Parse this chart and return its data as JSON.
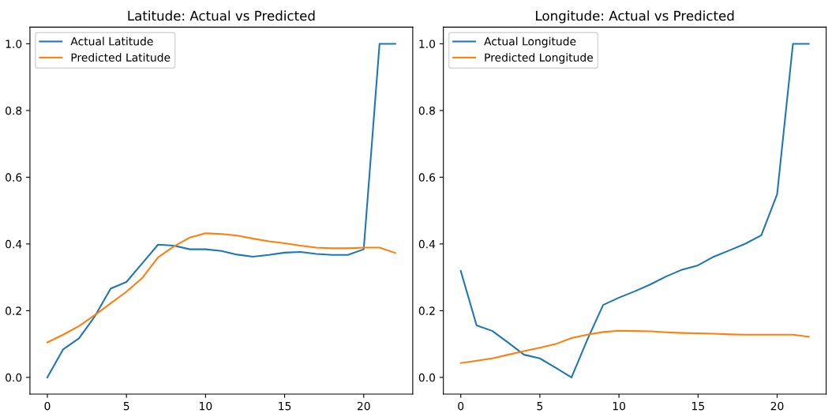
{
  "chart_data": [
    {
      "type": "line",
      "title": "Latitude: Actual vs Predicted",
      "x": [
        0,
        1,
        2,
        3,
        4,
        5,
        6,
        7,
        8,
        9,
        10,
        11,
        12,
        13,
        14,
        15,
        16,
        17,
        18,
        19,
        20,
        21,
        22
      ],
      "series": [
        {
          "name": "Actual Latitude",
          "color": "#1f77b4",
          "values": [
            0,
            0.084,
            0.117,
            0.183,
            0.266,
            0.286,
            0.342,
            0.398,
            0.395,
            0.384,
            0.384,
            0.379,
            0.368,
            0.362,
            0.367,
            0.374,
            0.376,
            0.37,
            0.367,
            0.367,
            0.384,
            1.0,
            1.0
          ]
        },
        {
          "name": "Predicted Latitude",
          "color": "#ff7f0e",
          "values": [
            0.105,
            0.128,
            0.154,
            0.187,
            0.222,
            0.257,
            0.298,
            0.36,
            0.393,
            0.419,
            0.432,
            0.43,
            0.425,
            0.416,
            0.408,
            0.402,
            0.395,
            0.389,
            0.387,
            0.387,
            0.389,
            0.389,
            0.373
          ]
        }
      ],
      "xlim": [
        -1.1,
        23.1
      ],
      "ylim": [
        -0.05,
        1.05
      ],
      "xticks": [
        0,
        5,
        10,
        15,
        20
      ],
      "yticks": [
        {
          "value": 0,
          "label": "0.0"
        },
        {
          "value": 0.2,
          "label": "0.2"
        },
        {
          "value": 0.4,
          "label": "0.4"
        },
        {
          "value": 0.6,
          "label": "0.6"
        },
        {
          "value": 0.8,
          "label": "0.8"
        },
        {
          "value": 1.0,
          "label": "1.0"
        }
      ],
      "legend": "top left",
      "grid": false
    },
    {
      "type": "line",
      "title": "Longitude: Actual vs Predicted",
      "x": [
        0,
        1,
        2,
        3,
        4,
        5,
        6,
        7,
        8,
        9,
        10,
        11,
        12,
        13,
        14,
        15,
        16,
        17,
        18,
        19,
        20,
        21,
        22
      ],
      "series": [
        {
          "name": "Actual Longitude",
          "color": "#1f77b4",
          "values": [
            0.319,
            0.156,
            0.139,
            0.104,
            0.068,
            0.057,
            0.029,
            0,
            0.113,
            0.217,
            0.239,
            0.258,
            0.279,
            0.303,
            0.323,
            0.336,
            0.362,
            0.381,
            0.401,
            0.426,
            0.549,
            1.0,
            1.0
          ]
        },
        {
          "name": "Predicted Longitude",
          "color": "#ff7f0e",
          "values": [
            0.043,
            0.05,
            0.057,
            0.068,
            0.079,
            0.089,
            0.1,
            0.118,
            0.128,
            0.136,
            0.14,
            0.139,
            0.138,
            0.135,
            0.133,
            0.132,
            0.131,
            0.129,
            0.128,
            0.128,
            0.128,
            0.128,
            0.122
          ]
        }
      ],
      "xlim": [
        -1.1,
        23.1
      ],
      "ylim": [
        -0.05,
        1.05
      ],
      "xticks": [
        0,
        5,
        10,
        15,
        20
      ],
      "yticks": [
        {
          "value": 0,
          "label": "0.0"
        },
        {
          "value": 0.2,
          "label": "0.2"
        },
        {
          "value": 0.4,
          "label": "0.4"
        },
        {
          "value": 0.6,
          "label": "0.6"
        },
        {
          "value": 0.8,
          "label": "0.8"
        },
        {
          "value": 1.0,
          "label": "1.0"
        }
      ],
      "legend": "top left",
      "grid": false
    }
  ]
}
